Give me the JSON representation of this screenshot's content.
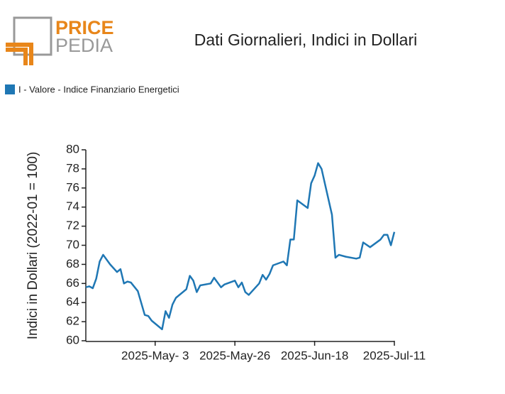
{
  "logo": {
    "top": "PRICE",
    "bottom": "PEDIA"
  },
  "chart_data": {
    "type": "line",
    "title": "Dati Giornalieri, Indici in Dollari",
    "ylabel": "Indici in Dollari (2022-01 = 100)",
    "x": [
      "2025-04-13",
      "2025-04-14",
      "2025-04-15",
      "2025-04-16",
      "2025-04-17",
      "2025-04-18",
      "2025-04-20",
      "2025-04-22",
      "2025-04-23",
      "2025-04-24",
      "2025-04-25",
      "2025-04-26",
      "2025-04-28",
      "2025-04-30",
      "2025-05-01",
      "2025-05-02",
      "2025-05-05",
      "2025-05-06",
      "2025-05-07",
      "2025-05-08",
      "2025-05-09",
      "2025-05-12",
      "2025-05-13",
      "2025-05-14",
      "2025-05-15",
      "2025-05-16",
      "2025-05-19",
      "2025-05-20",
      "2025-05-22",
      "2025-05-23",
      "2025-05-26",
      "2025-05-27",
      "2025-05-28",
      "2025-05-29",
      "2025-05-30",
      "2025-06-02",
      "2025-06-03",
      "2025-06-04",
      "2025-06-05",
      "2025-06-06",
      "2025-06-09",
      "2025-06-10",
      "2025-06-11",
      "2025-06-12",
      "2025-06-13",
      "2025-06-16",
      "2025-06-17",
      "2025-06-18",
      "2025-06-19",
      "2025-06-20",
      "2025-06-23",
      "2025-06-24",
      "2025-06-25",
      "2025-06-27",
      "2025-06-30",
      "2025-07-01",
      "2025-07-02",
      "2025-07-04",
      "2025-07-07",
      "2025-07-08",
      "2025-07-09",
      "2025-07-10",
      "2025-07-11"
    ],
    "series": [
      {
        "name": "I - Valore - Indice Finanziario Energetici",
        "color": "#1f77b4",
        "values": [
          65.6,
          65.7,
          65.5,
          66.5,
          68.3,
          69.0,
          68.0,
          67.2,
          67.5,
          66.0,
          66.2,
          66.1,
          65.2,
          62.7,
          62.6,
          62.1,
          61.2,
          63.1,
          62.4,
          63.8,
          64.5,
          65.4,
          66.8,
          66.3,
          65.1,
          65.8,
          66.0,
          66.6,
          65.6,
          65.9,
          66.3,
          65.6,
          66.1,
          65.1,
          64.8,
          66.0,
          66.9,
          66.4,
          67.0,
          67.9,
          68.3,
          67.9,
          70.6,
          70.6,
          74.7,
          73.9,
          76.5,
          77.3,
          78.6,
          78.0,
          73.2,
          68.7,
          69.0,
          68.8,
          68.6,
          68.7,
          70.3,
          69.8,
          70.6,
          71.1,
          71.1,
          70.0,
          71.4
        ]
      }
    ],
    "xlim": [
      "2025-04-13",
      "2025-07-11"
    ],
    "xticks": [
      {
        "value": "2025-05-03",
        "label": "2025-May- 3"
      },
      {
        "value": "2025-05-26",
        "label": "2025-May-26"
      },
      {
        "value": "2025-06-18",
        "label": "2025-Jun-18"
      },
      {
        "value": "2025-07-11",
        "label": "2025-Jul-11"
      }
    ],
    "ylim": [
      60,
      80
    ],
    "yticks": [
      60,
      62,
      64,
      66,
      68,
      70,
      72,
      74,
      76,
      78,
      80
    ],
    "grid": false
  }
}
